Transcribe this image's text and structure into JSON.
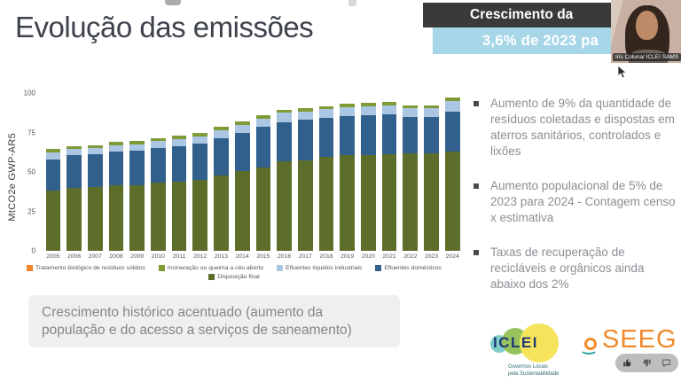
{
  "slide": {
    "title": "Evolução das emissões",
    "callout": {
      "line1": "Crescimento da",
      "line2": "3,6% de 2023 pa",
      "dark_bg": "#3a3a3a",
      "blue_bg": "#a7d6e8",
      "text_color": "#ffffff"
    },
    "bullets": [
      {
        "text": "Aumento de 9% da quantidade de resíduos coletadas e dispostas em aterros sanitários, controlados e lixões"
      },
      {
        "text": "Aumento populacional de 5% de 2023 para 2024 - Contagem censo x estimativa"
      },
      {
        "text": "Taxas de recuperação de recicláveis e orgânicos ainda abaixo dos 2%"
      }
    ],
    "bottom_note": "Crescimento histórico acentuado (aumento da população e do acesso a serviços de saneamento)",
    "logos": {
      "iclei": {
        "text": "ICLEI",
        "tagline_line1": "Governos Locais",
        "tagline_line2": "pela Sustentabilidade",
        "text_color": "#1e3a75",
        "circle_colors": [
          "#7fccc9",
          "#97c25c",
          "#f6e35c"
        ]
      },
      "seeg": {
        "text": "SEEG",
        "color": "#f08a2c",
        "mark_teal": "#2ba8a0"
      }
    }
  },
  "webcam": {
    "name_label": "Iris Coluna/ ICLEI SAMS"
  },
  "reactions": {
    "icons": [
      "thumbs-up",
      "thumbs-down",
      "chat"
    ]
  },
  "chart_data": {
    "type": "bar",
    "stacked": true,
    "title": "",
    "xlabel": "",
    "ylabel": "MtCO2e GWP-AR5",
    "ylim": [
      0,
      100
    ],
    "yticks": [
      0,
      25,
      50,
      75,
      100
    ],
    "grid": false,
    "legend_position": "bottom",
    "categories": [
      "2005",
      "2006",
      "2007",
      "2008",
      "2009",
      "2010",
      "2011",
      "2012",
      "2013",
      "2014",
      "2015",
      "2016",
      "2017",
      "2018",
      "2019",
      "2020",
      "2021",
      "2022",
      "2023",
      "2024"
    ],
    "series": [
      {
        "name": "Disposição final",
        "color": "#5d6e2b",
        "values": [
          38,
          40,
          40.5,
          41.5,
          41.5,
          43,
          44,
          45,
          48,
          50.5,
          53,
          57,
          57.5,
          59.5,
          60.5,
          60.5,
          61,
          62,
          62,
          63
        ]
      },
      {
        "name": "Efluentes domésticos",
        "color": "#31608d",
        "values": [
          20,
          20.5,
          20.5,
          21.5,
          22,
          22,
          22.5,
          23,
          23.5,
          24,
          25.5,
          24.5,
          25.5,
          25,
          25,
          25.5,
          25.5,
          23,
          23,
          25
        ]
      },
      {
        "name": "Efluentes líquidos industriais",
        "color": "#aac6e3",
        "values": [
          4.5,
          4,
          4,
          4,
          4,
          4.5,
          4.5,
          4.5,
          5,
          5.5,
          5.5,
          6,
          5.5,
          5.2,
          5.5,
          5.5,
          5.5,
          5.2,
          5.2,
          7
        ]
      },
      {
        "name": "Incineração ou queima a céu aberto",
        "color": "#7e9b35",
        "values": [
          2,
          2,
          2,
          2,
          2,
          2,
          2,
          2,
          2,
          2,
          2,
          1.9,
          1.8,
          2,
          2,
          2.3,
          2.3,
          2,
          2,
          2
        ]
      },
      {
        "name": "Tratamento biológico de resíduos sólidos",
        "color": "#f2862c",
        "values": [
          0,
          0,
          0,
          0,
          0,
          0,
          0,
          0,
          0,
          0.2,
          0.2,
          0,
          0,
          0,
          0.3,
          0.3,
          0,
          0,
          0,
          0
        ]
      }
    ],
    "legend_rows": [
      [
        {
          "label": "Tratamento biológico de resíduos sólidos",
          "color": "#f2862c"
        },
        {
          "label": "Incineração ou queima a céu aberto",
          "color": "#7e9b35"
        },
        {
          "label": "Efluentes líquidos industriais",
          "color": "#aac6e3"
        },
        {
          "label": "Efluentes domésticos",
          "color": "#31608d"
        }
      ],
      [
        {
          "label": "Disposição final",
          "color": "#5d6e2b"
        }
      ]
    ]
  }
}
